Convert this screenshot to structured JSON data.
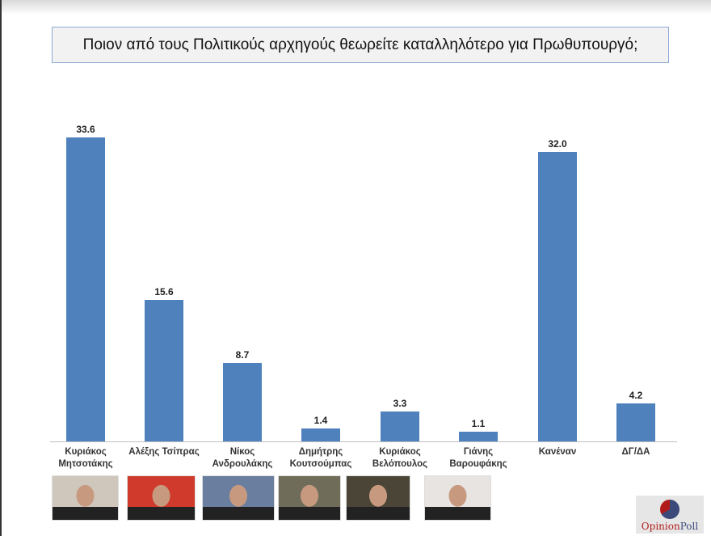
{
  "chart_data": {
    "type": "bar",
    "title": "Ποιον από τους Πολιτικούς αρχηγούς θεωρείτε καταλληλότερο για Πρωθυπουργό;",
    "categories": [
      "Κυριάκος Μητσοτάκης",
      "Αλέξης Τσίπρας",
      "Νίκος Ανδρουλάκης",
      "Δημήτρης Κουτσούμπας",
      "Κυριάκος Βελόπουλος",
      "Γιάνης Βαρουφάκης",
      "Κανέναν",
      "ΔΓ/ΔΑ"
    ],
    "values": [
      33.6,
      15.6,
      8.7,
      1.4,
      3.3,
      1.1,
      32.0,
      4.2
    ],
    "xlabel": "",
    "ylabel": "",
    "ylim": [
      0,
      35
    ],
    "grid": false,
    "legend": null,
    "color": "#4f81bd"
  },
  "title": "Ποιον από τους Πολιτικούς αρχηγούς θεωρείτε καταλληλότερο για Πρωθυπουργό;",
  "value_labels": [
    "33.6",
    "15.6",
    "8.7",
    "1.4",
    "3.3",
    "1.1",
    "32.0",
    "4.2"
  ],
  "category_labels": [
    [
      "Κυριάκος",
      "Μητσοτάκης"
    ],
    [
      "Αλέξης Τσίπρας",
      ""
    ],
    [
      "Νίκος",
      "Ανδρουλάκης"
    ],
    [
      "Δημήτρης",
      "Κουτσούμπας"
    ],
    [
      "Κυριάκος",
      "Βελόπουλος"
    ],
    [
      "Γιάνης",
      "Βαροuφάκης"
    ],
    [
      "Κανέναν",
      ""
    ],
    [
      "ΔΓ/ΔΑ",
      ""
    ]
  ],
  "photos": [
    "photo-mitsotakis",
    "photo-tsipras",
    "photo-androulakis",
    "photo-koutsoumpas",
    "photo-velopoulos",
    "photo-varoufakis"
  ],
  "logo": {
    "part1": "Opinion",
    "part2": "Poll"
  }
}
